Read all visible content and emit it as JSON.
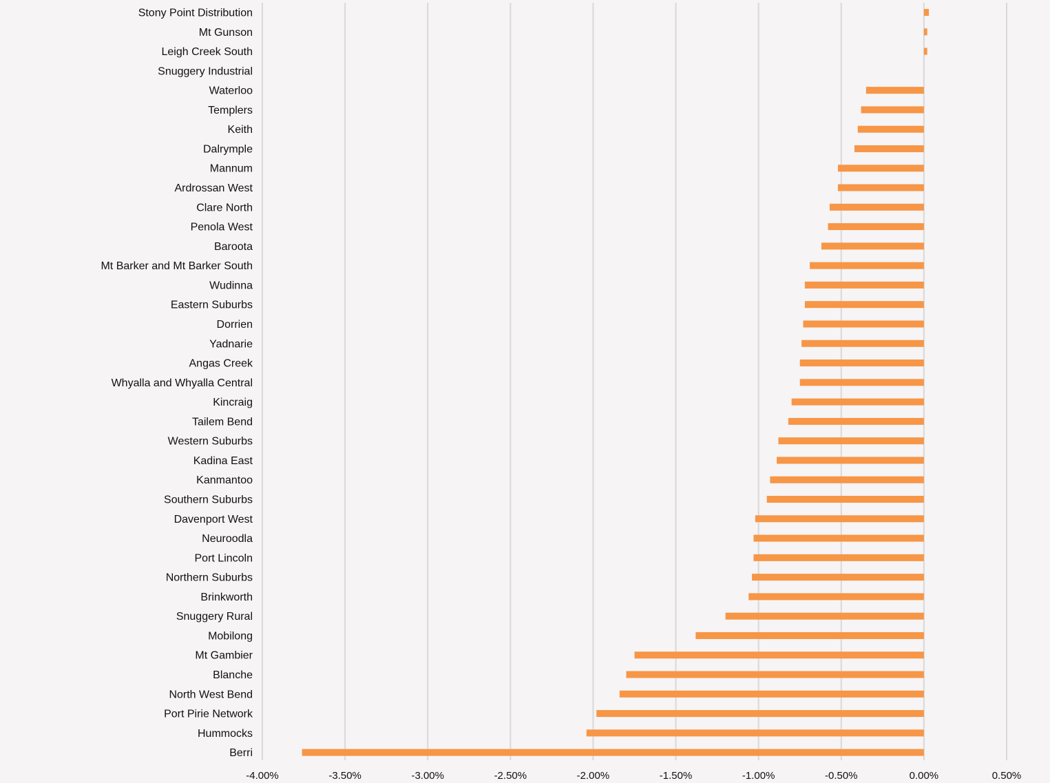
{
  "chart_data": {
    "type": "bar",
    "orientation": "horizontal",
    "title": "",
    "xlabel": "",
    "ylabel": "",
    "xlim": [
      -0.04,
      0.005
    ],
    "grid": true,
    "legend": "none",
    "bar_color": "#f79646",
    "categories": [
      "Stony Point Distribution",
      "Mt Gunson",
      "Leigh Creek South",
      "Snuggery Industrial",
      "Waterloo",
      "Templers",
      "Keith",
      "Dalrymple",
      "Mannum",
      "Ardrossan West",
      "Clare North",
      "Penola West",
      "Baroota",
      "Mt Barker and Mt Barker South",
      "Wudinna",
      "Eastern Suburbs",
      "Dorrien",
      "Yadnarie",
      "Angas Creek",
      "Whyalla and Whyalla Central",
      "Kincraig",
      "Tailem Bend",
      "Western Suburbs",
      "Kadina East",
      "Kanmantoo",
      "Southern Suburbs",
      "Davenport West",
      "Neuroodla",
      "Port Lincoln",
      "Northern Suburbs",
      "Brinkworth",
      "Snuggery Rural",
      "Mobilong",
      "Mt Gambier",
      "Blanche",
      "North West Bend",
      "Port Pirie Network",
      "Hummocks",
      "Berri"
    ],
    "values": [
      0.0003,
      0.0002,
      0.0002,
      0.0,
      -0.0035,
      -0.0038,
      -0.004,
      -0.0042,
      -0.0052,
      -0.0052,
      -0.0057,
      -0.0058,
      -0.0062,
      -0.0069,
      -0.0072,
      -0.0072,
      -0.0073,
      -0.0074,
      -0.0075,
      -0.0075,
      -0.008,
      -0.0082,
      -0.0088,
      -0.0089,
      -0.0093,
      -0.0095,
      -0.0102,
      -0.0103,
      -0.0103,
      -0.0104,
      -0.0106,
      -0.012,
      -0.0138,
      -0.0175,
      -0.018,
      -0.0184,
      -0.0198,
      -0.0204,
      -0.0376
    ],
    "x_ticks": [
      {
        "value": -0.04,
        "label": "-4.00%"
      },
      {
        "value": -0.035,
        "label": "-3.50%"
      },
      {
        "value": -0.03,
        "label": "-3.00%"
      },
      {
        "value": -0.025,
        "label": "-2.50%"
      },
      {
        "value": -0.02,
        "label": "-2.00%"
      },
      {
        "value": -0.015,
        "label": "-1.50%"
      },
      {
        "value": -0.01,
        "label": "-1.00%"
      },
      {
        "value": -0.005,
        "label": "-0.50%"
      },
      {
        "value": 0.0,
        "label": "0.00%"
      },
      {
        "value": 0.005,
        "label": "0.50%"
      }
    ]
  }
}
